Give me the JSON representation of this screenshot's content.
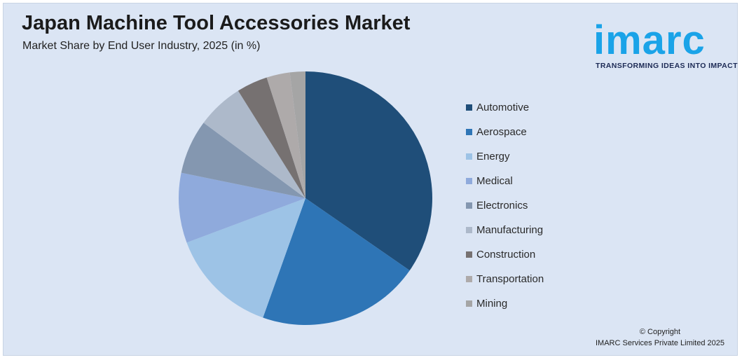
{
  "header": {
    "title": "Japan Machine Tool Accessories Market",
    "subtitle": "Market Share by End User Industry, 2025 (in %)"
  },
  "logo": {
    "word": "imarc",
    "tagline": "TRANSFORMING IDEAS INTO IMPACT",
    "color": "#1aa3e8"
  },
  "footer": {
    "copyright": "© Copyright",
    "company": "IMARC Services Private Limited 2025"
  },
  "chart_data": {
    "type": "pie",
    "title": "Japan Machine Tool Accessories Market",
    "subtitle": "Market Share by End User Industry, 2025 (in %)",
    "legend": "right",
    "categories": [
      "Automotive",
      "Aerospace",
      "Energy",
      "Medical",
      "Electronics",
      "Manufacturing",
      "Construction",
      "Transportation",
      "Mining"
    ],
    "values": [
      35,
      21,
      14,
      9,
      7,
      6,
      4,
      3,
      2
    ],
    "colors": [
      "#1f4e79",
      "#2e75b6",
      "#9dc3e6",
      "#8faadc",
      "#8497b0",
      "#adb9ca",
      "#767171",
      "#aeaaaa",
      "#a5a5a5"
    ]
  }
}
